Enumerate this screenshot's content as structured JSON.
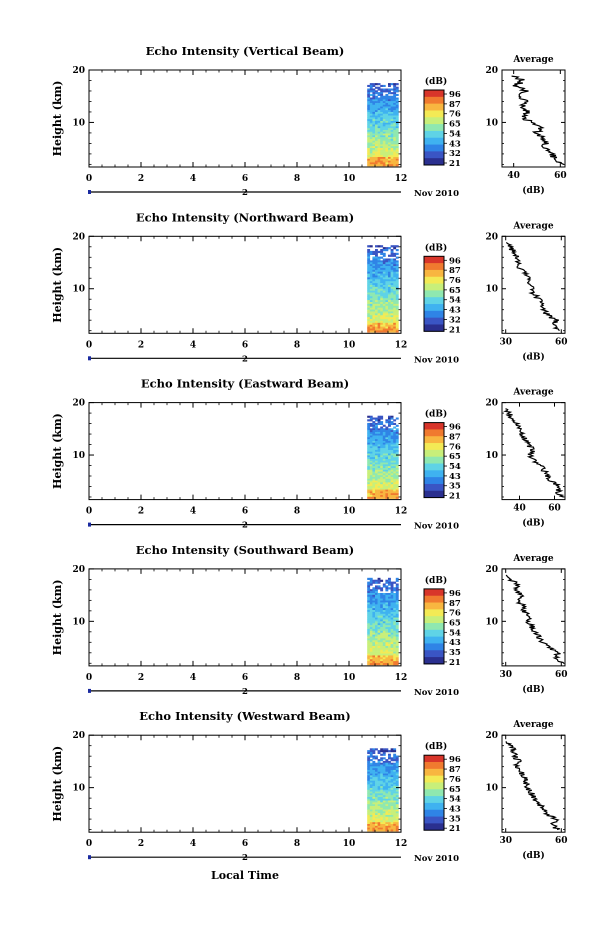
{
  "figure": {
    "xlabel": "Local Time",
    "date_label": "Nov 2010",
    "axis_marker_label": "2"
  },
  "colors": {
    "colormap": [
      "#2a2f8f",
      "#3a55c4",
      "#2f84e6",
      "#3fb2f0",
      "#5fd3e6",
      "#8fe8b0",
      "#c8ef7a",
      "#f3ea55",
      "#f8b640",
      "#f07a2f",
      "#d8352a"
    ]
  },
  "chart_data": [
    {
      "type": "heatmap",
      "title": "Echo Intensity (Vertical Beam)",
      "ylabel": "Height (km)",
      "xticks": [
        0,
        2,
        4,
        6,
        8,
        10,
        12
      ],
      "yticks": [
        10,
        20
      ],
      "xlim": [
        0,
        12
      ],
      "ylim": [
        1.5,
        20
      ],
      "data_time_range": [
        10.7,
        11.9
      ],
      "colorbar": {
        "label": "(dB)",
        "ticks": [
          "96",
          "87",
          "76",
          "65",
          "54",
          "43",
          "32",
          "21"
        ]
      },
      "average": {
        "title": "Average",
        "xlabel": "(dB)",
        "xlim": [
          35,
          62
        ],
        "xticks": [
          40,
          60
        ],
        "yticks": [
          10,
          20
        ],
        "heights": [
          2,
          3,
          4,
          5,
          6,
          7,
          8,
          9,
          10,
          11,
          12,
          13,
          14,
          15,
          16,
          17,
          18,
          19
        ],
        "values": [
          60,
          58,
          56,
          53,
          54,
          52,
          50,
          51,
          47,
          45,
          46,
          44,
          46,
          42,
          45,
          41,
          44,
          40
        ]
      }
    },
    {
      "type": "heatmap",
      "title": "Echo Intensity (Northward Beam)",
      "ylabel": "Height (km)",
      "xticks": [
        0,
        2,
        4,
        6,
        8,
        10,
        12
      ],
      "yticks": [
        10,
        20
      ],
      "xlim": [
        0,
        12
      ],
      "ylim": [
        1.5,
        20
      ],
      "data_time_range": [
        10.7,
        11.9
      ],
      "colorbar": {
        "label": "(dB)",
        "ticks": [
          "96",
          "87",
          "76",
          "65",
          "54",
          "43",
          "32",
          "21"
        ]
      },
      "average": {
        "title": "Average",
        "xlabel": "(dB)",
        "xlim": [
          28,
          62
        ],
        "xticks": [
          30,
          60
        ],
        "yticks": [
          10,
          20
        ],
        "heights": [
          2,
          3,
          4,
          5,
          6,
          7,
          8,
          9,
          10,
          11,
          12,
          13,
          14,
          15,
          16,
          17,
          18,
          19
        ],
        "values": [
          58,
          56,
          57,
          53,
          50,
          51,
          48,
          45,
          44,
          42,
          43,
          40,
          38,
          37,
          36,
          34,
          33,
          31
        ]
      }
    },
    {
      "type": "heatmap",
      "title": "Echo Intensity (Eastward Beam)",
      "ylabel": "Height (km)",
      "xticks": [
        0,
        2,
        4,
        6,
        8,
        10,
        12
      ],
      "yticks": [
        10,
        20
      ],
      "xlim": [
        0,
        12
      ],
      "ylim": [
        1.5,
        20
      ],
      "data_time_range": [
        10.7,
        11.9
      ],
      "colorbar": {
        "label": "(dB)",
        "ticks": [
          "96",
          "87",
          "76",
          "65",
          "54",
          "43",
          "35",
          "21"
        ]
      },
      "average": {
        "title": "Average",
        "xlabel": "(dB)",
        "xlim": [
          30,
          66
        ],
        "xticks": [
          40,
          60
        ],
        "yticks": [
          10,
          20
        ],
        "heights": [
          2,
          3,
          4,
          5,
          6,
          7,
          8,
          9,
          10,
          11,
          12,
          13,
          14,
          15,
          16,
          17,
          18,
          19
        ],
        "values": [
          64,
          62,
          63,
          58,
          56,
          54,
          52,
          48,
          46,
          48,
          45,
          43,
          41,
          40,
          38,
          36,
          34,
          32
        ]
      }
    },
    {
      "type": "heatmap",
      "title": "Echo Intensity (Southward Beam)",
      "ylabel": "Height (km)",
      "xticks": [
        0,
        2,
        4,
        6,
        8,
        10,
        12
      ],
      "yticks": [
        10,
        20
      ],
      "xlim": [
        0,
        12
      ],
      "ylim": [
        1.5,
        20
      ],
      "data_time_range": [
        10.7,
        11.9
      ],
      "colorbar": {
        "label": "(dB)",
        "ticks": [
          "96",
          "87",
          "76",
          "65",
          "54",
          "43",
          "35",
          "21"
        ]
      },
      "average": {
        "title": "Average",
        "xlabel": "(dB)",
        "xlim": [
          28,
          62
        ],
        "xticks": [
          30,
          60
        ],
        "yticks": [
          10,
          20
        ],
        "heights": [
          2,
          3,
          4,
          5,
          6,
          7,
          8,
          9,
          10,
          11,
          12,
          13,
          14,
          15,
          16,
          17,
          18,
          19
        ],
        "values": [
          60,
          57,
          58,
          54,
          50,
          48,
          46,
          44,
          42,
          43,
          40,
          39,
          37,
          38,
          35,
          36,
          33,
          31
        ]
      }
    },
    {
      "type": "heatmap",
      "title": "Echo Intensity (Westward Beam)",
      "ylabel": "Height (km)",
      "xticks": [
        0,
        2,
        4,
        6,
        8,
        10,
        12
      ],
      "yticks": [
        10,
        20
      ],
      "xlim": [
        0,
        12
      ],
      "ylim": [
        1.5,
        20
      ],
      "data_time_range": [
        10.7,
        11.9
      ],
      "colorbar": {
        "label": "(dB)",
        "ticks": [
          "96",
          "87",
          "76",
          "65",
          "54",
          "43",
          "35",
          "21"
        ]
      },
      "average": {
        "title": "Average",
        "xlabel": "(dB)",
        "xlim": [
          28,
          62
        ],
        "xticks": [
          30,
          60
        ],
        "yticks": [
          10,
          20
        ],
        "heights": [
          2,
          3,
          4,
          5,
          6,
          7,
          8,
          9,
          10,
          11,
          12,
          13,
          14,
          15,
          16,
          17,
          18,
          19
        ],
        "values": [
          58,
          55,
          57,
          52,
          50,
          48,
          45,
          44,
          42,
          41,
          40,
          38,
          36,
          37,
          35,
          34,
          33,
          31
        ]
      }
    }
  ]
}
